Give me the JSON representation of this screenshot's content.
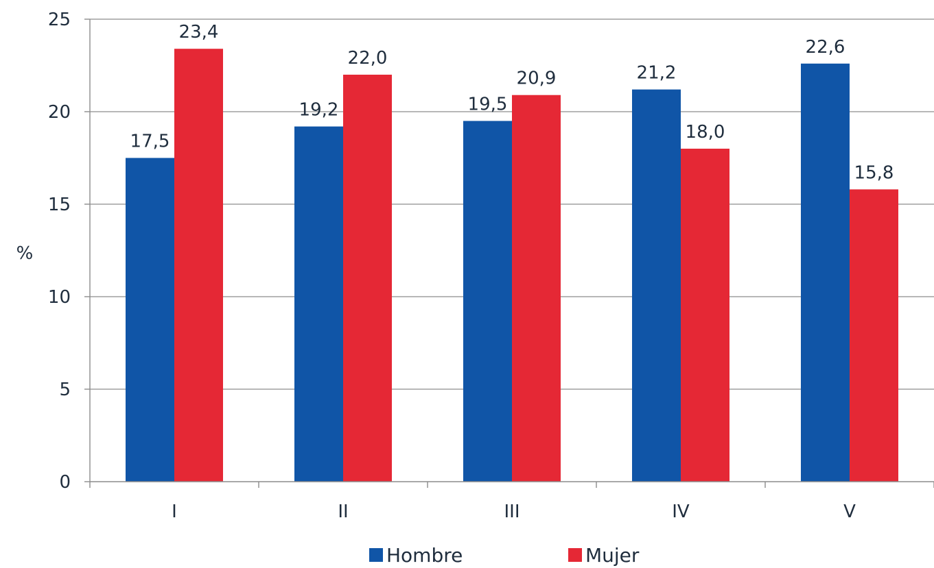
{
  "chart_data": {
    "type": "bar",
    "categories": [
      "I",
      "II",
      "III",
      "IV",
      "V"
    ],
    "series": [
      {
        "name": "Hombre",
        "values": [
          17.5,
          19.2,
          19.5,
          21.2,
          22.6
        ],
        "labels": [
          "17,5",
          "19,2",
          "19,5",
          "21,2",
          "22,6"
        ],
        "color": "#1055a7"
      },
      {
        "name": "Mujer",
        "values": [
          23.4,
          22.0,
          20.9,
          18.0,
          15.8
        ],
        "labels": [
          "23,4",
          "22,0",
          "20,9",
          "18,0",
          "15,8"
        ],
        "color": "#e52835"
      }
    ],
    "ylabel": "%",
    "xlabel": "",
    "title": "",
    "ylim": [
      0,
      25
    ],
    "yticks": [
      0,
      5,
      10,
      15,
      20,
      25
    ],
    "grid": true,
    "legend_position": "bottom"
  }
}
